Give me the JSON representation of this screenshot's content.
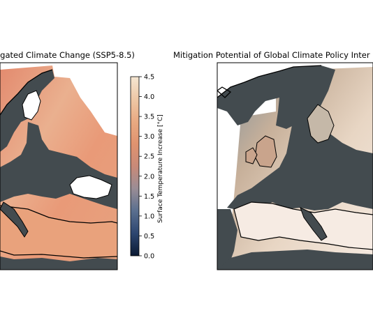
{
  "chart_data": [
    {
      "type": "heatmap",
      "title": "...igated Climate Change (SSP5-8.5)",
      "colorbar": {
        "label": "Surface Temperature Increase [°C]",
        "ticks": [
          "0.0",
          "0.5",
          "1.0",
          "1.5",
          "2.0",
          "2.5",
          "3.0",
          "3.5",
          "4.0",
          "4.5"
        ],
        "range": [
          0.0,
          4.5
        ],
        "colormap": [
          "#0b1a33",
          "#2d4670",
          "#5a6f8f",
          "#9a8d95",
          "#c98a78",
          "#e0936f",
          "#e9aa82",
          "#eec8a6",
          "#f5e6d2"
        ]
      },
      "regions_values": {
        "scandinavia": 3.6,
        "central_europe": 3.9,
        "iberia_italy": 3.4,
        "mediterranean_sea": 3.6
      }
    },
    {
      "type": "heatmap",
      "title": "Mitigation Potential of Global Climate Policy Inter",
      "regions_values": {
        "atlantic_west": 2.2,
        "british_isles": 3.9,
        "scandinavia": 3.8,
        "mediterranean": 4.4
      }
    }
  ],
  "colors": {
    "land": "#434b4f",
    "coast": "#000000",
    "water_white": "#ffffff"
  }
}
